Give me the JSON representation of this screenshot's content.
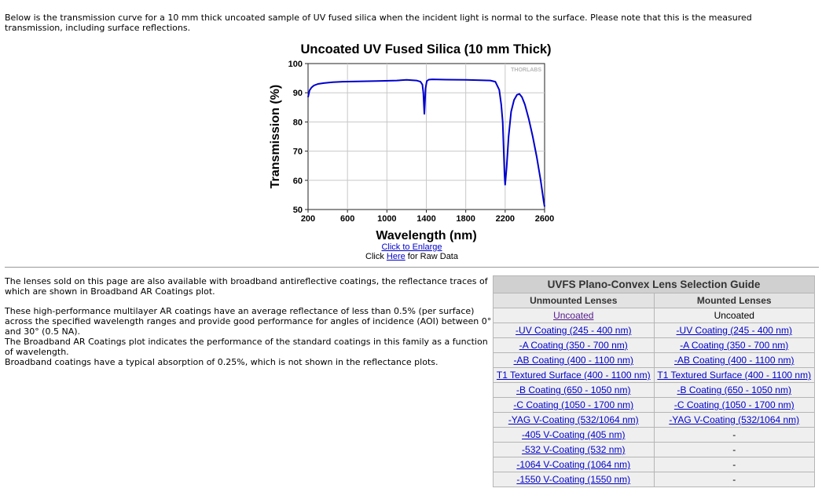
{
  "intro_text": "Below is the transmission curve for a 10 mm thick uncoated sample of UV fused silica when the incident light is normal to the surface. Please note that this is the measured transmission, including surface reflections.",
  "chart_links": {
    "enlarge": "Click to Enlarge",
    "raw_prefix": "Click ",
    "raw_link": "Here",
    "raw_suffix": " for Raw Data"
  },
  "chart_data": {
    "type": "line",
    "title": "Uncoated UV Fused Silica (10 mm Thick)",
    "xlabel": "Wavelength (nm)",
    "ylabel": "Transmission (%)",
    "xlim": [
      200,
      2600
    ],
    "ylim": [
      50,
      100
    ],
    "xticks": [
      200,
      600,
      1000,
      1400,
      1800,
      2200,
      2600
    ],
    "yticks": [
      50,
      60,
      70,
      80,
      90,
      100
    ],
    "watermark": "THORLABS",
    "line_color": "#0000cc",
    "series": [
      {
        "x": [
          200,
          215,
          235,
          260,
          300,
          360,
          450,
          550,
          700,
          900,
          1100,
          1200,
          1300,
          1340,
          1360,
          1370,
          1375,
          1380,
          1385,
          1392,
          1405,
          1425,
          1460,
          1600,
          1800,
          1950,
          2050,
          2100,
          2140,
          2160,
          2175,
          2185,
          2193,
          2200,
          2206,
          2215,
          2235,
          2260,
          2290,
          2320,
          2345,
          2370,
          2400,
          2440,
          2480,
          2520,
          2560,
          2590,
          2600
        ],
        "y": [
          88.5,
          90.8,
          91.8,
          92.5,
          93.0,
          93.3,
          93.6,
          93.8,
          93.9,
          94.0,
          94.2,
          94.4,
          94.2,
          93.8,
          92.8,
          90.0,
          86.0,
          82.8,
          86.0,
          91.5,
          94.0,
          94.5,
          94.6,
          94.5,
          94.4,
          94.3,
          94.2,
          93.8,
          91.0,
          86.0,
          80.0,
          70.0,
          62.0,
          58.5,
          61.0,
          64.5,
          75.0,
          83.5,
          87.5,
          89.3,
          89.6,
          88.5,
          86.0,
          81.0,
          75.0,
          68.0,
          60.0,
          53.0,
          51.0
        ]
      }
    ]
  },
  "sections": {
    "p1": "The lenses sold on this page are also available with broadband antireflective coatings, the reflectance traces of which are shown in Broadband AR Coatings plot.",
    "p2_line1": "These high-performance multilayer AR coatings have an average reflectance of less than 0.5% (per surface) across the specified wavelength ranges and provide good performance for angles of incidence (AOI) between 0° and 30° (0.5 NA).",
    "p2_line2": "The Broadband AR Coatings plot indicates the performance of the standard coatings in this family as a function of wavelength.",
    "p2_line3": "Broadband coatings have a typical absorption of 0.25%, which is not shown in the reflectance plots."
  },
  "guide": {
    "title": "UVFS Plano-Convex Lens Selection Guide",
    "col1": "Unmounted Lenses",
    "col2": "Mounted Lenses",
    "rows": [
      {
        "unmounted": "Uncoated",
        "mounted": "Uncoated"
      },
      {
        "unmounted": "-UV Coating (245 - 400 nm)",
        "mounted": "-UV Coating (245 - 400 nm)"
      },
      {
        "unmounted": "-A Coating (350 - 700 nm)",
        "mounted": "-A Coating (350 - 700 nm)"
      },
      {
        "unmounted": "-AB Coating (400 - 1100 nm)",
        "mounted": "-AB Coating (400 - 1100 nm)"
      },
      {
        "unmounted": "T1 Textured Surface (400 - 1100 nm)",
        "mounted": "T1 Textured Surface (400 - 1100 nm)"
      },
      {
        "unmounted": "-B Coating (650 - 1050 nm)",
        "mounted": "-B Coating (650 - 1050 nm)"
      },
      {
        "unmounted": "-C Coating (1050 - 1700 nm)",
        "mounted": "-C Coating (1050 - 1700 nm)"
      },
      {
        "unmounted": "-YAG V-Coating (532/1064 nm)",
        "mounted": "-YAG V-Coating (532/1064 nm)"
      },
      {
        "unmounted": "-405 V-Coating (405 nm)",
        "mounted": "-"
      },
      {
        "unmounted": "-532 V-Coating (532 nm)",
        "mounted": "-"
      },
      {
        "unmounted": "-1064 V-Coating (1064 nm)",
        "mounted": "-"
      },
      {
        "unmounted": "-1550 V-Coating (1550 nm)",
        "mounted": "-"
      }
    ]
  }
}
